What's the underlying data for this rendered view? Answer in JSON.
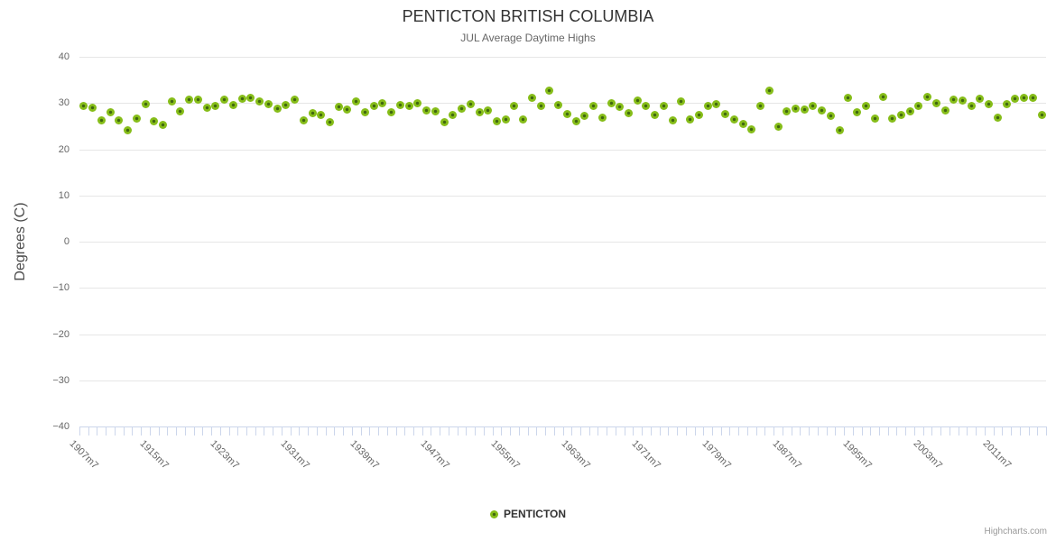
{
  "header": {
    "title": "PENTICTON BRITISH COLUMBIA",
    "subtitle": "JUL Average Daytime Highs"
  },
  "legend": {
    "label": "PENTICTON"
  },
  "credits": {
    "label": "Highcharts.com"
  },
  "colors": {
    "marker_fill": "#86bd19",
    "marker_center": "#3f660f",
    "gridline": "#e6e6e6",
    "axis_line": "#ccd6eb",
    "title_text": "#333333",
    "subtitle_text": "#666666",
    "axis_label_text": "#666666",
    "credits_text": "#999999"
  },
  "chart_data": {
    "type": "scatter",
    "title": "PENTICTON BRITISH COLUMBIA",
    "subtitle": "JUL Average Daytime Highs",
    "xlabel": "",
    "ylabel": "Degrees (C)",
    "ylim": [
      -40,
      40
    ],
    "ytick_interval": 10,
    "ytick_labels": [
      "40",
      "30",
      "20",
      "10",
      "0",
      "-10",
      "-20",
      "-30",
      "-40"
    ],
    "grid": "horizontal-only",
    "legend_position": "bottom-center",
    "xtick_labels": [
      "1907m7",
      "1915m7",
      "1923m7",
      "1931m7",
      "1939m7",
      "1947m7",
      "1955m7",
      "1963m7",
      "1971m7",
      "1979m7",
      "1987m7",
      "1995m7",
      "2003m7",
      "2011m7"
    ],
    "series": [
      {
        "name": "PENTICTON",
        "color": "#86bd19",
        "years": [
          1907,
          1908,
          1909,
          1910,
          1911,
          1912,
          1913,
          1914,
          1915,
          1916,
          1917,
          1918,
          1919,
          1920,
          1921,
          1922,
          1923,
          1924,
          1925,
          1926,
          1927,
          1928,
          1929,
          1930,
          1931,
          1932,
          1933,
          1934,
          1935,
          1936,
          1937,
          1938,
          1939,
          1940,
          1941,
          1942,
          1943,
          1944,
          1945,
          1946,
          1947,
          1948,
          1949,
          1950,
          1951,
          1952,
          1953,
          1954,
          1955,
          1956,
          1957,
          1958,
          1959,
          1960,
          1961,
          1962,
          1963,
          1964,
          1965,
          1966,
          1967,
          1968,
          1969,
          1970,
          1971,
          1972,
          1973,
          1974,
          1975,
          1976,
          1977,
          1978,
          1979,
          1980,
          1981,
          1982,
          1983,
          1984,
          1985,
          1986,
          1987,
          1988,
          1989,
          1990,
          1991,
          1992,
          1993,
          1994,
          1995,
          1996,
          1997,
          1998,
          1999,
          2000,
          2001,
          2002,
          2003,
          2004,
          2005,
          2006,
          2007,
          2008,
          2009,
          2010,
          2011,
          2012,
          2013,
          2014,
          2015,
          2016
        ],
        "values": [
          29.3,
          29.0,
          26.2,
          28.0,
          26.2,
          24.1,
          26.6,
          29.7,
          26.0,
          25.2,
          30.3,
          28.1,
          30.7,
          30.8,
          28.9,
          29.4,
          30.7,
          29.5,
          30.9,
          31.2,
          30.3,
          29.7,
          28.8,
          29.5,
          30.7,
          26.2,
          27.9,
          27.5,
          25.8,
          29.2,
          28.6,
          30.4,
          28.0,
          29.4,
          29.9,
          28.0,
          29.5,
          29.3,
          29.9,
          28.4,
          28.2,
          25.9,
          27.5,
          28.8,
          29.7,
          28.0,
          28.4,
          26.0,
          26.5,
          29.4,
          26.4,
          31.2,
          29.4,
          32.7,
          29.6,
          27.7,
          26.0,
          27.3,
          29.4,
          26.9,
          29.9,
          29.1,
          27.9,
          30.6,
          29.3,
          27.5,
          29.3,
          26.2,
          30.3,
          26.5,
          27.5,
          29.3,
          29.7,
          27.7,
          26.5,
          25.5,
          24.2,
          29.3,
          32.7,
          24.9,
          28.1,
          28.8,
          28.6,
          29.3,
          28.4,
          27.3,
          24.1,
          31.2,
          28.0,
          29.4,
          26.7,
          31.4,
          26.7,
          27.5,
          28.1,
          29.3,
          31.4,
          29.9,
          28.4,
          30.7,
          30.6,
          29.4,
          31.0,
          29.7,
          26.8,
          29.7,
          30.9,
          31.2,
          31.2,
          27.5
        ]
      }
    ]
  }
}
